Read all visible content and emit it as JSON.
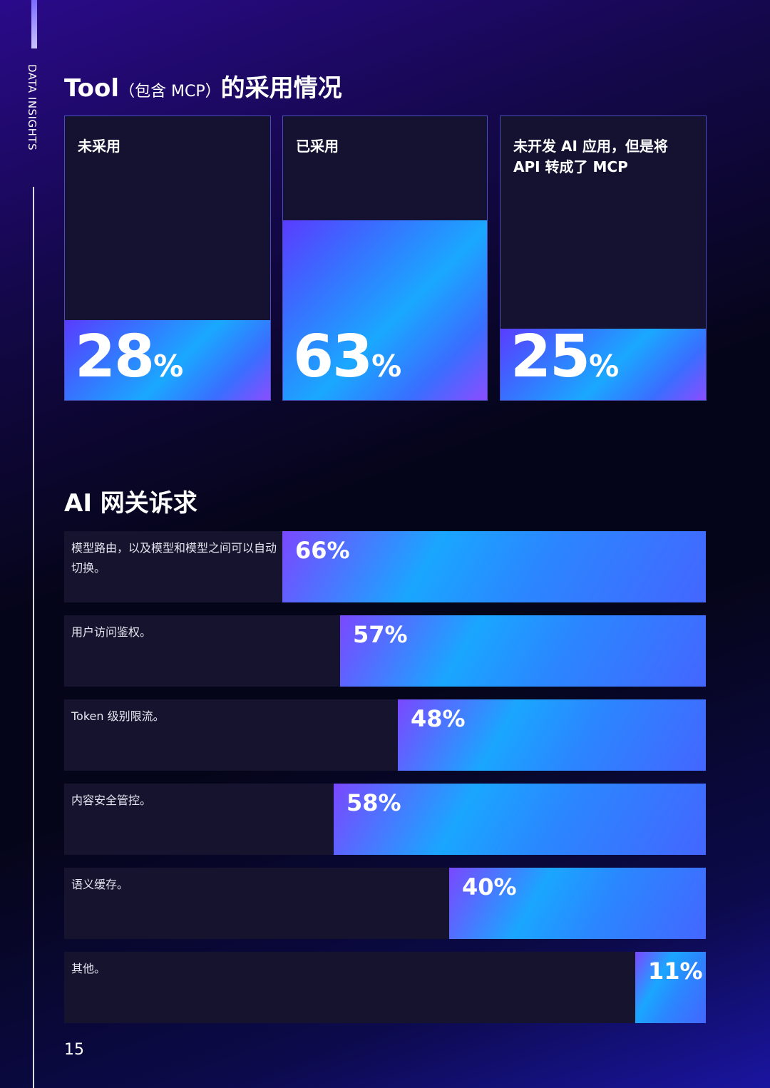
{
  "side_label": "DATA INSIGHTS",
  "page_number": "15",
  "colors": {
    "accent_blue": "#1aa8ff",
    "accent_violet": "#5a3cff",
    "background": "#05051a"
  },
  "chart_data": [
    {
      "type": "bar",
      "title_main": "Tool",
      "title_paren": "（包含 MCP）",
      "title_tail": "的采用情况",
      "categories": [
        "未采用",
        "已采用",
        "未开发 AI 应用，但是将 API 转成了 MCP"
      ],
      "values": [
        28,
        63,
        25
      ],
      "unit": "%",
      "ylim": [
        0,
        100
      ]
    },
    {
      "type": "bar",
      "title": "AI 网关诉求",
      "categories": [
        "模型路由，以及模型和模型之间可以自动切换。",
        "用户访问鉴权。",
        "Token 级别限流。",
        "内容安全管控。",
        "语义缓存。",
        "其他。"
      ],
      "values": [
        66,
        57,
        48,
        58,
        40,
        11
      ],
      "labels": [
        "66%",
        "57%",
        "48%",
        "58%",
        "40%",
        "11%"
      ],
      "unit": "%",
      "xlim": [
        0,
        100
      ]
    }
  ]
}
